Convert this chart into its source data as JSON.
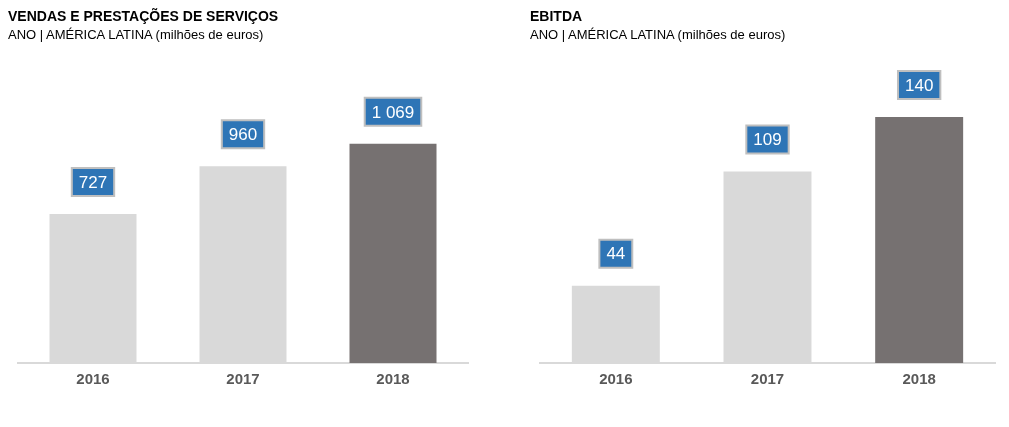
{
  "chart_data": [
    {
      "type": "bar",
      "title": "VENDAS E PRESTAÇÕES DE SERVIÇOS",
      "subtitle": "ANO | AMÉRICA LATINA (milhões de euros)",
      "categories": [
        "2016",
        "2017",
        "2018"
      ],
      "values": [
        727,
        960,
        1069
      ],
      "value_labels": [
        "727",
        "960",
        "1 069"
      ],
      "colors": [
        "#d9d9d9",
        "#d9d9d9",
        "#767171"
      ]
    },
    {
      "type": "bar",
      "title": "EBITDA",
      "subtitle": "ANO | AMÉRICA LATINA (milhões de euros)",
      "categories": [
        "2016",
        "2017",
        "2018"
      ],
      "values": [
        44,
        109,
        140
      ],
      "data_labels": true,
      "colors": [
        "#d9d9d9",
        "#d9d9d9",
        "#767171"
      ]
    }
  ]
}
